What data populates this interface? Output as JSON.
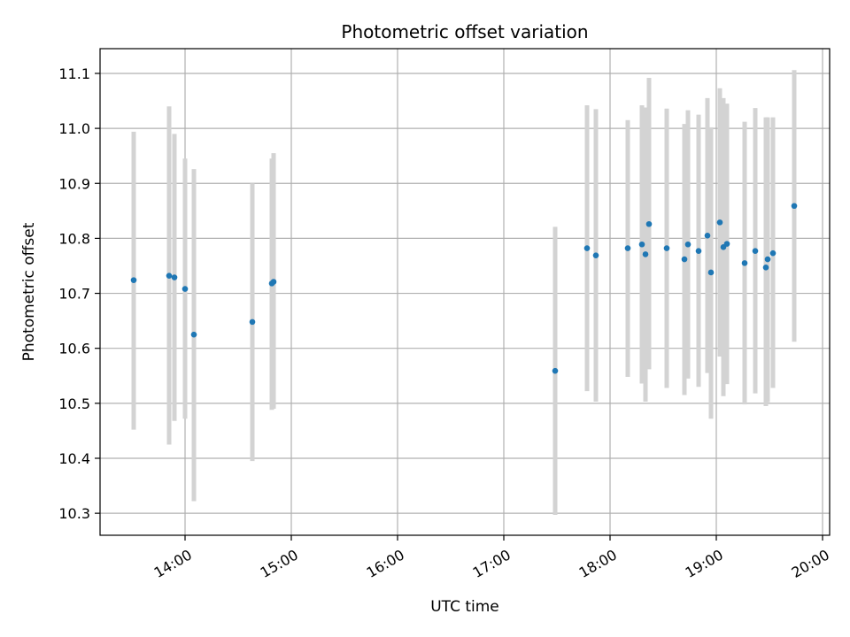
{
  "chart_data": {
    "type": "scatter",
    "title": "Photometric offset variation",
    "xlabel": "UTC time",
    "ylabel": "Photometric offset",
    "x_unit": "time of day (UTC)",
    "xlim": [
      "13:12",
      "20:04"
    ],
    "ylim": [
      10.26,
      11.145
    ],
    "x_ticks": [
      "14:00",
      "15:00",
      "16:00",
      "17:00",
      "18:00",
      "19:00",
      "20:00"
    ],
    "y_ticks": [
      10.3,
      10.4,
      10.5,
      10.6,
      10.7,
      10.8,
      10.9,
      11.0,
      11.1
    ],
    "grid": true,
    "marker_color": "#1f77b4",
    "errorbar_color": "#d3d3d3",
    "points": [
      {
        "t": "13:31",
        "y": 10.724,
        "lo": 10.452,
        "hi": 10.994
      },
      {
        "t": "13:51",
        "y": 10.732,
        "lo": 10.425,
        "hi": 11.04
      },
      {
        "t": "13:54",
        "y": 10.729,
        "lo": 10.468,
        "hi": 10.99
      },
      {
        "t": "14:00",
        "y": 10.708,
        "lo": 10.472,
        "hi": 10.945
      },
      {
        "t": "14:05",
        "y": 10.625,
        "lo": 10.322,
        "hi": 10.926
      },
      {
        "t": "14:38",
        "y": 10.648,
        "lo": 10.395,
        "hi": 10.9
      },
      {
        "t": "14:49",
        "y": 10.718,
        "lo": 10.488,
        "hi": 10.945
      },
      {
        "t": "14:50",
        "y": 10.721,
        "lo": 10.49,
        "hi": 10.955
      },
      {
        "t": "17:29",
        "y": 10.559,
        "lo": 10.297,
        "hi": 10.821
      },
      {
        "t": "17:47",
        "y": 10.782,
        "lo": 10.522,
        "hi": 11.042
      },
      {
        "t": "17:52",
        "y": 10.769,
        "lo": 10.503,
        "hi": 11.035
      },
      {
        "t": "18:10",
        "y": 10.782,
        "lo": 10.548,
        "hi": 11.015
      },
      {
        "t": "18:18",
        "y": 10.789,
        "lo": 10.536,
        "hi": 11.042
      },
      {
        "t": "18:20",
        "y": 10.771,
        "lo": 10.503,
        "hi": 11.038
      },
      {
        "t": "18:22",
        "y": 10.826,
        "lo": 10.562,
        "hi": 11.092
      },
      {
        "t": "18:32",
        "y": 10.782,
        "lo": 10.528,
        "hi": 11.036
      },
      {
        "t": "18:42",
        "y": 10.762,
        "lo": 10.515,
        "hi": 11.008
      },
      {
        "t": "18:44",
        "y": 10.789,
        "lo": 10.545,
        "hi": 11.033
      },
      {
        "t": "18:50",
        "y": 10.777,
        "lo": 10.53,
        "hi": 11.025
      },
      {
        "t": "18:55",
        "y": 10.805,
        "lo": 10.555,
        "hi": 11.055
      },
      {
        "t": "18:57",
        "y": 10.738,
        "lo": 10.472,
        "hi": 11.002
      },
      {
        "t": "19:02",
        "y": 10.829,
        "lo": 10.585,
        "hi": 11.073
      },
      {
        "t": "19:04",
        "y": 10.784,
        "lo": 10.513,
        "hi": 11.055
      },
      {
        "t": "19:06",
        "y": 10.79,
        "lo": 10.535,
        "hi": 11.045
      },
      {
        "t": "19:16",
        "y": 10.755,
        "lo": 10.498,
        "hi": 11.012
      },
      {
        "t": "19:22",
        "y": 10.777,
        "lo": 10.518,
        "hi": 11.037
      },
      {
        "t": "19:28",
        "y": 10.747,
        "lo": 10.495,
        "hi": 11.02
      },
      {
        "t": "19:29",
        "y": 10.762,
        "lo": 10.502,
        "hi": 11.02
      },
      {
        "t": "19:32",
        "y": 10.773,
        "lo": 10.528,
        "hi": 11.02
      },
      {
        "t": "19:44",
        "y": 10.859,
        "lo": 10.612,
        "hi": 11.106
      }
    ]
  }
}
